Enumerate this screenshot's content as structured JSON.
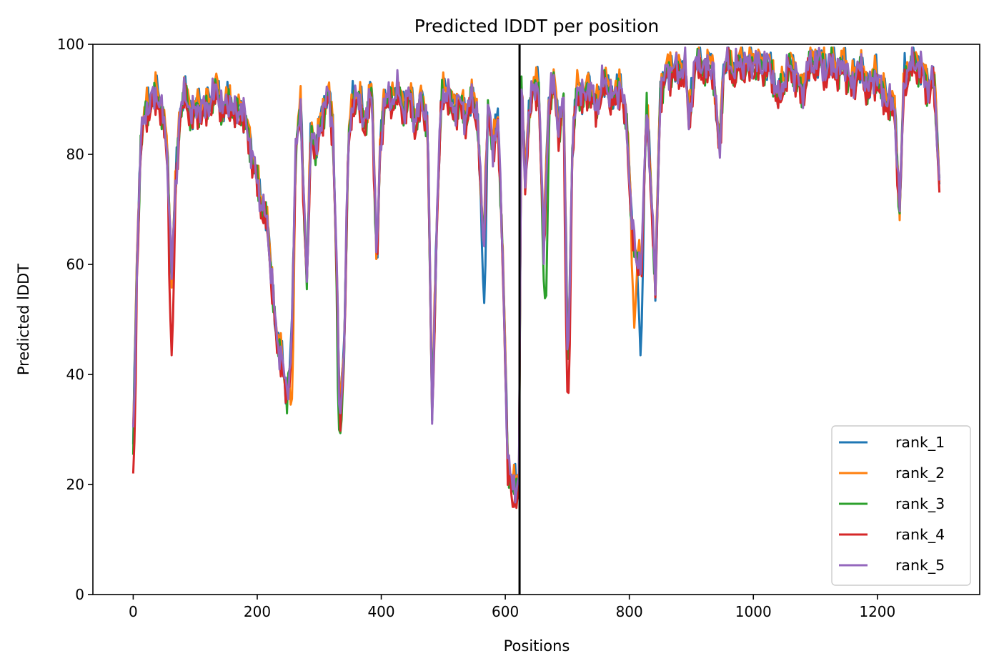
{
  "chart_data": {
    "type": "line",
    "title": "Predicted lDDT per position",
    "xlabel": "Positions",
    "ylabel": "Predicted lDDT",
    "xlim": [
      -65,
      1365
    ],
    "ylim": [
      0,
      100
    ],
    "xticks": [
      0,
      200,
      400,
      600,
      800,
      1000,
      1200
    ],
    "yticks": [
      0,
      20,
      40,
      60,
      80,
      100
    ],
    "vline_x": 623,
    "grid": false,
    "legend_position": "bottom-right",
    "x_start": 0,
    "x_end": 1300,
    "series": [
      {
        "name": "rank_1",
        "color": "#1f77b4",
        "offset": 0.3,
        "dips": [
          {
            "x": 818,
            "y": 43.5
          },
          {
            "x": 566,
            "y": 53
          }
        ]
      },
      {
        "name": "rank_2",
        "color": "#ff7f0e",
        "offset": 0.8,
        "dips": [
          {
            "x": 808,
            "y": 48.5
          },
          {
            "x": 255,
            "y": 32.5
          }
        ]
      },
      {
        "name": "rank_3",
        "color": "#2ca02c",
        "offset": -0.6,
        "dips": [
          {
            "x": 333,
            "y": 28.3
          },
          {
            "x": 665,
            "y": 50.5
          }
        ]
      },
      {
        "name": "rank_4",
        "color": "#d62728",
        "offset": -1.3,
        "dips": [
          {
            "x": 0,
            "y": 22
          },
          {
            "x": 62,
            "y": 43.5
          },
          {
            "x": 701,
            "y": 35.5
          },
          {
            "x": 613,
            "y": 15.5
          }
        ]
      },
      {
        "name": "rank_5",
        "color": "#9467bd",
        "offset": 0.0,
        "dips": []
      }
    ],
    "base_profile": [
      [
        0,
        27
      ],
      [
        6,
        60
      ],
      [
        12,
        82
      ],
      [
        20,
        88
      ],
      [
        30,
        90
      ],
      [
        40,
        91
      ],
      [
        48,
        87
      ],
      [
        55,
        80
      ],
      [
        62,
        58
      ],
      [
        68,
        73
      ],
      [
        75,
        88
      ],
      [
        85,
        91
      ],
      [
        95,
        87
      ],
      [
        105,
        89
      ],
      [
        115,
        88
      ],
      [
        125,
        90
      ],
      [
        135,
        92
      ],
      [
        145,
        88
      ],
      [
        155,
        90
      ],
      [
        165,
        87
      ],
      [
        175,
        89
      ],
      [
        185,
        84
      ],
      [
        195,
        78
      ],
      [
        205,
        72
      ],
      [
        215,
        68
      ],
      [
        225,
        56
      ],
      [
        232,
        45
      ],
      [
        240,
        44
      ],
      [
        248,
        35
      ],
      [
        255,
        45
      ],
      [
        262,
        80
      ],
      [
        270,
        89
      ],
      [
        280,
        56
      ],
      [
        287,
        86
      ],
      [
        295,
        80
      ],
      [
        305,
        88
      ],
      [
        315,
        91
      ],
      [
        322,
        85
      ],
      [
        328,
        60
      ],
      [
        333,
        31
      ],
      [
        340,
        45
      ],
      [
        347,
        82
      ],
      [
        355,
        91
      ],
      [
        365,
        89
      ],
      [
        375,
        86
      ],
      [
        385,
        92
      ],
      [
        393,
        60
      ],
      [
        398,
        80
      ],
      [
        405,
        91
      ],
      [
        415,
        89
      ],
      [
        425,
        92
      ],
      [
        435,
        88
      ],
      [
        445,
        91
      ],
      [
        455,
        86
      ],
      [
        465,
        90
      ],
      [
        475,
        86
      ],
      [
        482,
        32
      ],
      [
        490,
        70
      ],
      [
        497,
        90
      ],
      [
        505,
        92
      ],
      [
        515,
        88
      ],
      [
        525,
        90
      ],
      [
        535,
        87
      ],
      [
        545,
        90
      ],
      [
        555,
        88
      ],
      [
        565,
        62
      ],
      [
        572,
        90
      ],
      [
        580,
        80
      ],
      [
        588,
        88
      ],
      [
        596,
        60
      ],
      [
        604,
        25
      ],
      [
        612,
        19
      ],
      [
        622,
        21
      ],
      [
        626,
        92
      ],
      [
        632,
        75
      ],
      [
        638,
        88
      ],
      [
        646,
        92
      ],
      [
        654,
        93
      ],
      [
        662,
        62
      ],
      [
        670,
        90
      ],
      [
        678,
        93
      ],
      [
        686,
        85
      ],
      [
        694,
        90
      ],
      [
        701,
        40
      ],
      [
        708,
        80
      ],
      [
        716,
        93
      ],
      [
        726,
        90
      ],
      [
        736,
        93
      ],
      [
        746,
        88
      ],
      [
        756,
        93
      ],
      [
        766,
        92
      ],
      [
        776,
        90
      ],
      [
        786,
        93
      ],
      [
        796,
        85
      ],
      [
        803,
        70
      ],
      [
        811,
        60
      ],
      [
        820,
        62
      ],
      [
        828,
        88
      ],
      [
        835,
        75
      ],
      [
        842,
        55
      ],
      [
        850,
        92
      ],
      [
        860,
        95
      ],
      [
        870,
        96
      ],
      [
        880,
        95
      ],
      [
        890,
        96
      ],
      [
        896,
        86
      ],
      [
        905,
        96
      ],
      [
        915,
        97
      ],
      [
        925,
        95
      ],
      [
        935,
        97
      ],
      [
        945,
        80
      ],
      [
        952,
        96
      ],
      [
        960,
        97
      ],
      [
        970,
        95
      ],
      [
        980,
        97
      ],
      [
        990,
        96
      ],
      [
        1000,
        97
      ],
      [
        1010,
        96
      ],
      [
        1020,
        97
      ],
      [
        1030,
        95
      ],
      [
        1040,
        90
      ],
      [
        1048,
        93
      ],
      [
        1058,
        96
      ],
      [
        1068,
        95
      ],
      [
        1078,
        91
      ],
      [
        1088,
        96
      ],
      [
        1098,
        97
      ],
      [
        1108,
        97
      ],
      [
        1118,
        95
      ],
      [
        1128,
        97
      ],
      [
        1138,
        95
      ],
      [
        1148,
        97
      ],
      [
        1158,
        92
      ],
      [
        1168,
        96
      ],
      [
        1178,
        94
      ],
      [
        1188,
        92
      ],
      [
        1198,
        95
      ],
      [
        1208,
        91
      ],
      [
        1218,
        90
      ],
      [
        1228,
        88
      ],
      [
        1236,
        70
      ],
      [
        1243,
        94
      ],
      [
        1253,
        96
      ],
      [
        1263,
        97
      ],
      [
        1273,
        95
      ],
      [
        1283,
        92
      ],
      [
        1291,
        94
      ],
      [
        1298,
        80
      ],
      [
        1300,
        76
      ]
    ]
  }
}
